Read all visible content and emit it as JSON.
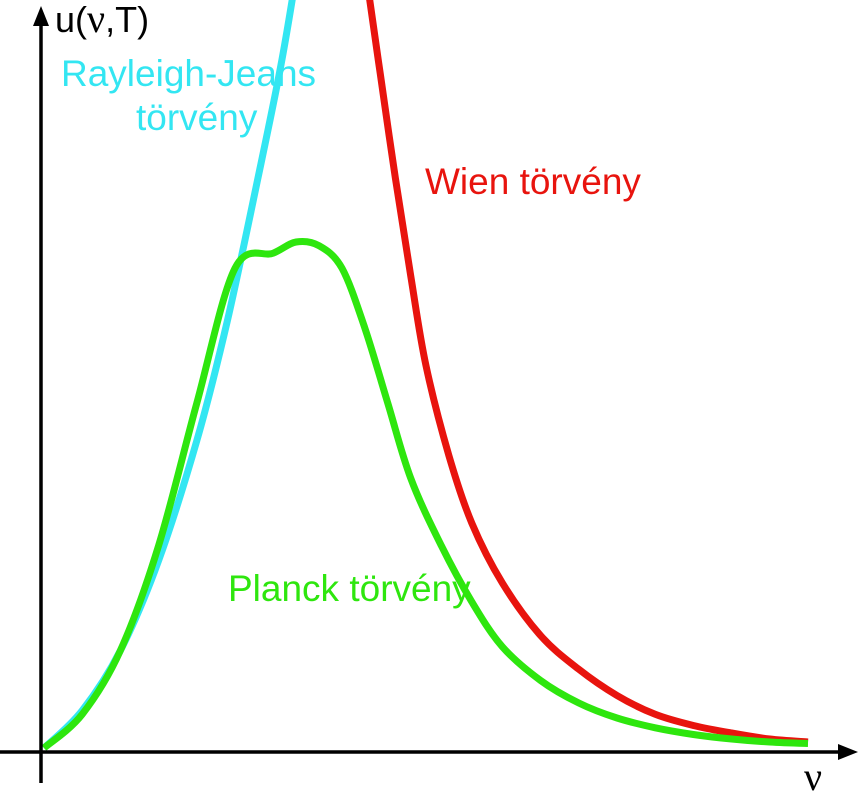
{
  "chart_data": {
    "type": "line",
    "title": "",
    "xlabel": "ν",
    "ylabel": "u(ν,T)",
    "ylabel_parts": {
      "left": "u(",
      "symbol": "ν",
      "right": ",T)"
    },
    "grid": false,
    "ticks": false,
    "legend": "inline labels",
    "xlim": [
      0,
      10
    ],
    "ylim": [
      0,
      10
    ],
    "series": [
      {
        "name": "Rayleigh-Jeans törvény",
        "label_lines": [
          "Rayleigh-Jeans",
          "törvény"
        ],
        "color": "#33e6f2",
        "x": [
          0.0,
          0.5,
          1.0,
          1.5,
          2.0,
          2.4,
          2.8,
          3.1,
          3.3
        ],
        "y": [
          0.0,
          0.5,
          1.3,
          2.5,
          4.1,
          5.7,
          7.6,
          9.1,
          10.3
        ]
      },
      {
        "name": "Wien törvény",
        "label_lines": [
          "Wien törvény"
        ],
        "color": "#e8140e",
        "x": [
          4.26,
          4.4,
          4.6,
          4.8,
          5.0,
          5.3,
          5.6,
          6.0,
          6.5,
          7.0,
          7.5,
          8.0,
          8.5,
          9.0,
          9.5,
          10.0
        ],
        "y": [
          10.0,
          9.0,
          7.6,
          6.3,
          5.1,
          3.9,
          3.0,
          2.2,
          1.5,
          1.05,
          0.7,
          0.45,
          0.3,
          0.2,
          0.12,
          0.08
        ]
      },
      {
        "name": "Planck törvény",
        "label_lines": [
          "Planck törvény"
        ],
        "color": "#2ee60e",
        "x": [
          0.0,
          0.5,
          1.0,
          1.5,
          2.0,
          2.5,
          3.0,
          3.3,
          3.6,
          3.9,
          4.2,
          4.5,
          4.8,
          5.2,
          5.6,
          6.0,
          6.5,
          7.0,
          7.5,
          8.0,
          8.5,
          9.0,
          9.5,
          10.0
        ],
        "y": [
          0.0,
          0.45,
          1.3,
          2.7,
          4.6,
          6.4,
          6.6,
          6.75,
          6.7,
          6.4,
          5.6,
          4.6,
          3.6,
          2.7,
          1.95,
          1.35,
          0.9,
          0.6,
          0.4,
          0.27,
          0.18,
          0.12,
          0.08,
          0.06
        ]
      }
    ]
  }
}
